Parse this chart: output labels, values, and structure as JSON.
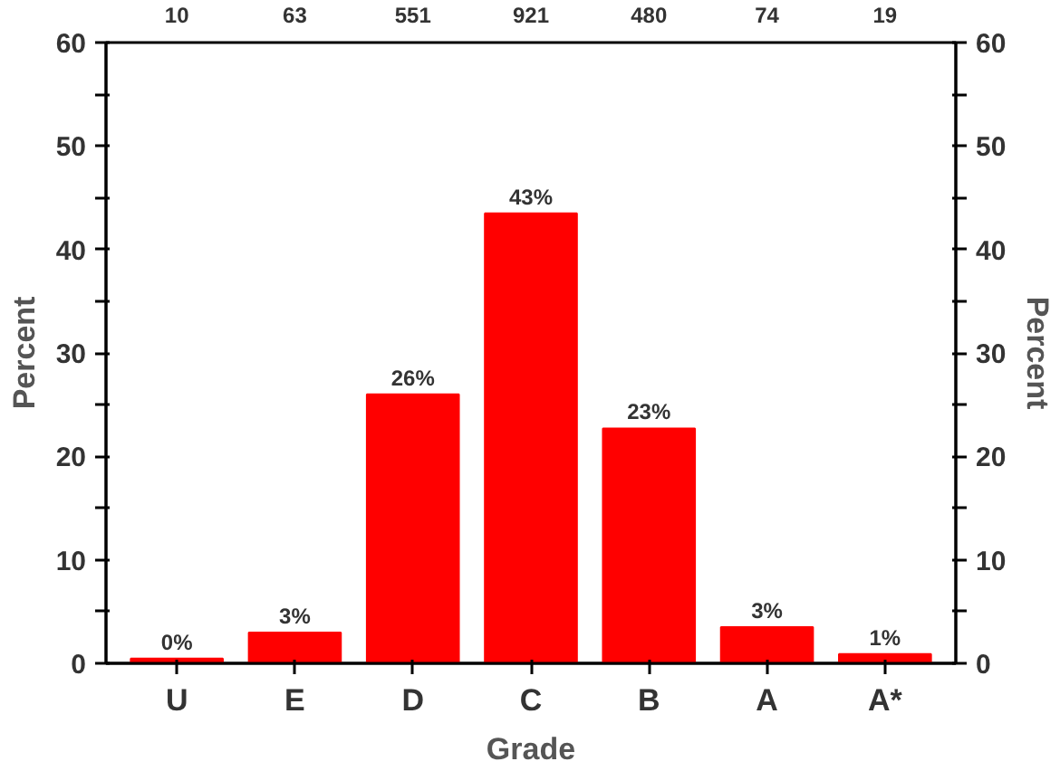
{
  "chart_data": {
    "type": "bar",
    "xlabel": "Grade",
    "ylabel": "Percent",
    "y2label": "Percent",
    "categories": [
      "U",
      "E",
      "D",
      "C",
      "B",
      "A",
      "A*"
    ],
    "values": [
      0.47,
      2.97,
      26.0,
      43.5,
      22.7,
      3.5,
      0.9
    ],
    "value_labels": [
      "0%",
      "3%",
      "26%",
      "43%",
      "23%",
      "3%",
      "1%"
    ],
    "color": "#ff0000",
    "ylim": [
      0,
      60
    ],
    "yticks": [
      0,
      {
        "value": 5,
        "label": null
      },
      10,
      {
        "value": 15,
        "label": null
      },
      20,
      {
        "value": 25,
        "label": null
      },
      30,
      {
        "value": 35,
        "label": null
      },
      40,
      {
        "value": 45,
        "label": null
      },
      50,
      {
        "value": 55,
        "label": null
      },
      60
    ],
    "y2lim": [
      0,
      60
    ],
    "y2ticks": [
      0,
      {
        "value": 5,
        "label": null
      },
      10,
      {
        "value": 15,
        "label": null
      },
      20,
      {
        "value": 25,
        "label": null
      },
      30,
      {
        "value": 35,
        "label": null
      },
      40,
      {
        "value": 45,
        "label": null
      },
      50,
      {
        "value": 55,
        "label": null
      },
      60
    ],
    "annotations": [
      "10",
      "63",
      "551",
      "921",
      "480",
      "74",
      "19"
    ],
    "grid": false
  }
}
